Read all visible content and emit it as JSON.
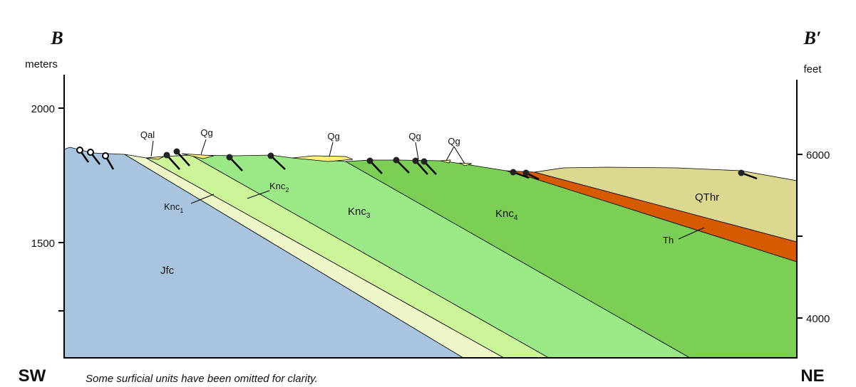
{
  "left": {
    "letter": "B",
    "unit": "meters",
    "ticks": [
      "2000",
      "1500"
    ],
    "direction": "SW"
  },
  "right": {
    "letter": "B′",
    "unit": "feet",
    "ticks": [
      "6000",
      "4000"
    ],
    "direction": "NE"
  },
  "note": "Some surficial units have been omitted for clarity.",
  "surface_labels": [
    "Qal",
    "Qg",
    "Qg",
    "Qg",
    "Qg"
  ],
  "units": {
    "jfc": "Jfc",
    "knc1": {
      "name": "Knc",
      "sub": "1"
    },
    "knc2": {
      "name": "Knc",
      "sub": "2"
    },
    "knc3": {
      "name": "Knc",
      "sub": "3"
    },
    "knc4": {
      "name": "Knc",
      "sub": "4"
    },
    "th": "Th",
    "qthr": "QThr"
  }
}
